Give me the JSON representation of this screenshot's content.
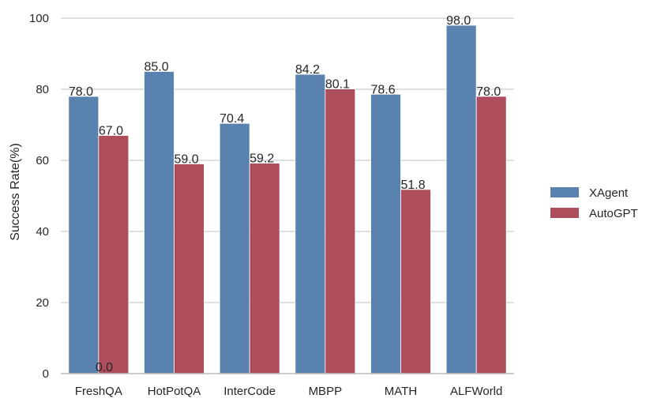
{
  "chart_data": {
    "type": "bar",
    "categories": [
      "FreshQA",
      "HotPotQA",
      "InterCode",
      "MBPP",
      "MATH",
      "ALFWorld"
    ],
    "series": [
      {
        "name": "XAgent",
        "values": [
          78.0,
          85.0,
          70.4,
          84.2,
          78.6,
          98.0
        ],
        "color": "#4c78a8"
      },
      {
        "name": "AutoGPT",
        "values": [
          67.0,
          59.0,
          59.2,
          80.1,
          51.8,
          78.0
        ],
        "color": "#a83f4f"
      }
    ],
    "data_labels": [
      [
        "78.0",
        "85.0",
        "70.4",
        "84.2",
        "78.6",
        "98.0"
      ],
      [
        "67.0",
        "59.0",
        "59.2",
        "80.1",
        "51.8",
        "78.0"
      ]
    ],
    "extra_label": "0.0",
    "xlabel": "",
    "ylabel": "Success Rate(%)",
    "ylim": [
      0,
      100
    ],
    "yticks": [
      "0",
      "20",
      "40",
      "60",
      "80",
      "100"
    ],
    "grid": "horizontal",
    "legend_position": "right"
  }
}
